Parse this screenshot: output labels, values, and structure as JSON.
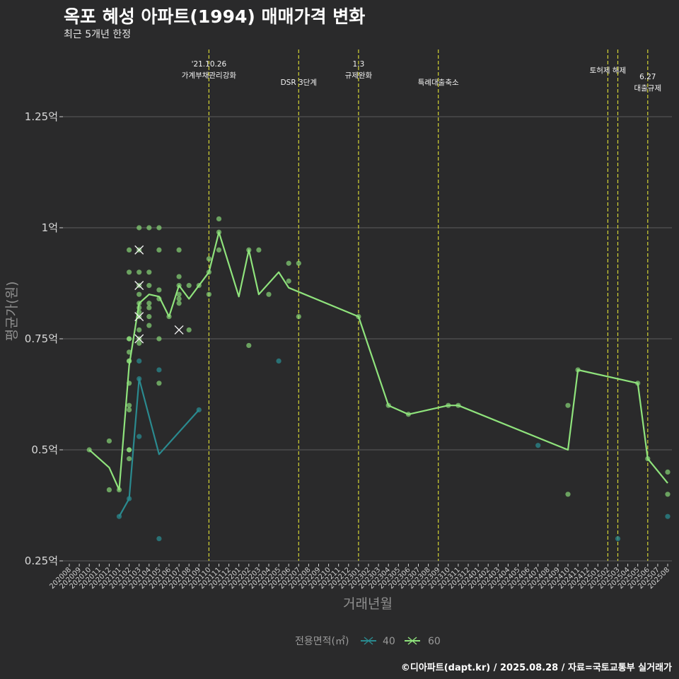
{
  "title": "옥포 혜성 아파트(1994) 매매가격 변화",
  "subtitle": "최근 5개년 한정",
  "credit": "©디아파트(dapt.kr) / 2025.08.28 / 자료=국토교통부 실거래가",
  "colors": {
    "s40": "#2a8a8f",
    "s60": "#8fe37c",
    "events": "#d4d434",
    "grid": "#5c5c5c",
    "background": "#2a2a2b"
  },
  "chart_data": {
    "type": "line",
    "title": "옥포 혜성 아파트(1994) 매매가격 변화",
    "xlabel": "거래년월",
    "ylabel": "평균가(원)",
    "ylim": [
      0.25,
      1.35
    ],
    "yticks": [
      {
        "value": 0.25,
        "label": "0.25억"
      },
      {
        "value": 0.5,
        "label": "0.5억"
      },
      {
        "value": 0.75,
        "label": "0.75억"
      },
      {
        "value": 1.0,
        "label": "1억"
      },
      {
        "value": 1.25,
        "label": "1.25억"
      }
    ],
    "categories": [
      "202008",
      "202009",
      "202010",
      "202011",
      "202012",
      "202101",
      "202102",
      "202103",
      "202104",
      "202105",
      "202106",
      "202107",
      "202108",
      "202109",
      "202110",
      "202111",
      "202112",
      "202201",
      "202202",
      "202203",
      "202204",
      "202205",
      "202206",
      "202207",
      "202208",
      "202209",
      "202210",
      "202211",
      "202212",
      "202301",
      "202302",
      "202303",
      "202304",
      "202305",
      "202306",
      "202307",
      "202308",
      "202309",
      "202310",
      "202311",
      "202312",
      "202401",
      "202402",
      "202403",
      "202404",
      "202405",
      "202406",
      "202407",
      "202408",
      "202409",
      "202410",
      "202411",
      "202412",
      "202501",
      "202502",
      "202503",
      "202504",
      "202505",
      "202506",
      "202507",
      "202508"
    ],
    "legend_title": "전용면적(㎡)",
    "series": [
      {
        "name": "40",
        "line": [
          [
            "202101",
            0.35
          ],
          [
            "202102",
            0.39
          ],
          [
            "202103",
            0.66
          ],
          [
            "202105",
            0.49
          ],
          [
            "202109",
            0.59
          ]
        ],
        "points": [
          [
            "202101",
            0.35
          ],
          [
            "202102",
            0.39
          ],
          [
            "202103",
            0.66
          ],
          [
            "202103",
            0.53
          ],
          [
            "202103",
            0.7
          ],
          [
            "202105",
            0.68
          ],
          [
            "202105",
            0.3
          ],
          [
            "202109",
            0.59
          ],
          [
            "202205",
            0.7
          ],
          [
            "202407",
            0.51
          ],
          [
            "202503",
            0.3
          ],
          [
            "202508",
            0.35
          ]
        ],
        "x_marks": []
      },
      {
        "name": "60",
        "line": [
          [
            "202010",
            0.5
          ],
          [
            "202012",
            0.46
          ],
          [
            "202101",
            0.41
          ],
          [
            "202102",
            0.69
          ],
          [
            "202103",
            0.83
          ],
          [
            "202104",
            0.85
          ],
          [
            "202105",
            0.845
          ],
          [
            "202106",
            0.8
          ],
          [
            "202107",
            0.87
          ],
          [
            "202108",
            0.84
          ],
          [
            "202109",
            0.87
          ],
          [
            "202110",
            0.9
          ],
          [
            "202111",
            0.99
          ],
          [
            "202201",
            0.845
          ],
          [
            "202202",
            0.95
          ],
          [
            "202203",
            0.85
          ],
          [
            "202205",
            0.9
          ],
          [
            "202206",
            0.865
          ],
          [
            "202301",
            0.8
          ],
          [
            "202304",
            0.6
          ],
          [
            "202306",
            0.58
          ],
          [
            "202310",
            0.6
          ],
          [
            "202311",
            0.6
          ],
          [
            "202410",
            0.5
          ],
          [
            "202411",
            0.68
          ],
          [
            "202505",
            0.65
          ],
          [
            "202506",
            0.48
          ],
          [
            "202508",
            0.425
          ]
        ],
        "points": [
          [
            "202010",
            0.5
          ],
          [
            "202012",
            0.52
          ],
          [
            "202012",
            0.41
          ],
          [
            "202101",
            0.41
          ],
          [
            "202102",
            0.95
          ],
          [
            "202102",
            0.9
          ],
          [
            "202102",
            0.75
          ],
          [
            "202102",
            0.75
          ],
          [
            "202102",
            0.72
          ],
          [
            "202102",
            0.7
          ],
          [
            "202102",
            0.7
          ],
          [
            "202102",
            0.65
          ],
          [
            "202102",
            0.6
          ],
          [
            "202102",
            0.59
          ],
          [
            "202102",
            0.5
          ],
          [
            "202102",
            0.5
          ],
          [
            "202102",
            0.48
          ],
          [
            "202103",
            1.0
          ],
          [
            "202103",
            0.95
          ],
          [
            "202103",
            0.9
          ],
          [
            "202103",
            0.87
          ],
          [
            "202103",
            0.85
          ],
          [
            "202103",
            0.83
          ],
          [
            "202103",
            0.82
          ],
          [
            "202103",
            0.81
          ],
          [
            "202103",
            0.8
          ],
          [
            "202103",
            0.77
          ],
          [
            "202103",
            0.75
          ],
          [
            "202103",
            0.74
          ],
          [
            "202104",
            1.0
          ],
          [
            "202104",
            0.9
          ],
          [
            "202104",
            0.87
          ],
          [
            "202104",
            0.83
          ],
          [
            "202104",
            0.82
          ],
          [
            "202104",
            0.8
          ],
          [
            "202104",
            0.78
          ],
          [
            "202105",
            1.0
          ],
          [
            "202105",
            0.95
          ],
          [
            "202105",
            0.86
          ],
          [
            "202105",
            0.84
          ],
          [
            "202105",
            0.75
          ],
          [
            "202105",
            0.65
          ],
          [
            "202106",
            0.8
          ],
          [
            "202107",
            0.95
          ],
          [
            "202107",
            0.89
          ],
          [
            "202107",
            0.87
          ],
          [
            "202107",
            0.85
          ],
          [
            "202107",
            0.84
          ],
          [
            "202107",
            0.83
          ],
          [
            "202108",
            0.87
          ],
          [
            "202108",
            0.77
          ],
          [
            "202109",
            0.87
          ],
          [
            "202110",
            0.93
          ],
          [
            "202110",
            0.9
          ],
          [
            "202110",
            0.85
          ],
          [
            "202111",
            1.02
          ],
          [
            "202111",
            0.99
          ],
          [
            "202111",
            0.95
          ],
          [
            "202202",
            0.95
          ],
          [
            "202202",
            0.735
          ],
          [
            "202203",
            0.95
          ],
          [
            "202204",
            0.85
          ],
          [
            "202206",
            0.92
          ],
          [
            "202206",
            0.88
          ],
          [
            "202207",
            0.92
          ],
          [
            "202207",
            0.8
          ],
          [
            "202301",
            0.8
          ],
          [
            "202304",
            0.6
          ],
          [
            "202306",
            0.58
          ],
          [
            "202310",
            0.6
          ],
          [
            "202311",
            0.6
          ],
          [
            "202410",
            0.6
          ],
          [
            "202410",
            0.4
          ],
          [
            "202411",
            0.68
          ],
          [
            "202505",
            0.65
          ],
          [
            "202506",
            0.48
          ],
          [
            "202508",
            0.45
          ],
          [
            "202508",
            0.4
          ]
        ],
        "x_marks": [
          [
            "202103",
            0.95
          ],
          [
            "202103",
            0.87
          ],
          [
            "202103",
            0.8
          ],
          [
            "202103",
            0.75
          ],
          [
            "202107",
            0.77
          ]
        ]
      }
    ],
    "events": [
      {
        "x": "202110",
        "lines": [
          "'21.10.26",
          "가계부채관리강화"
        ],
        "row": 0
      },
      {
        "x": "202207",
        "lines": [
          "DSR 3단계"
        ],
        "row": 1
      },
      {
        "x": "202301",
        "lines": [
          "1.3",
          "규제완화"
        ],
        "row": 0
      },
      {
        "x": "202309",
        "lines": [
          "특례대출축소"
        ],
        "row": 1
      },
      {
        "x": "202502",
        "lines": [
          "토허제 해제"
        ],
        "row": 0.5
      },
      {
        "x": "202503",
        "lines": [],
        "row": 0
      },
      {
        "x": "202506",
        "lines": [
          "6.27",
          "대출규제"
        ],
        "row": 1
      }
    ]
  }
}
